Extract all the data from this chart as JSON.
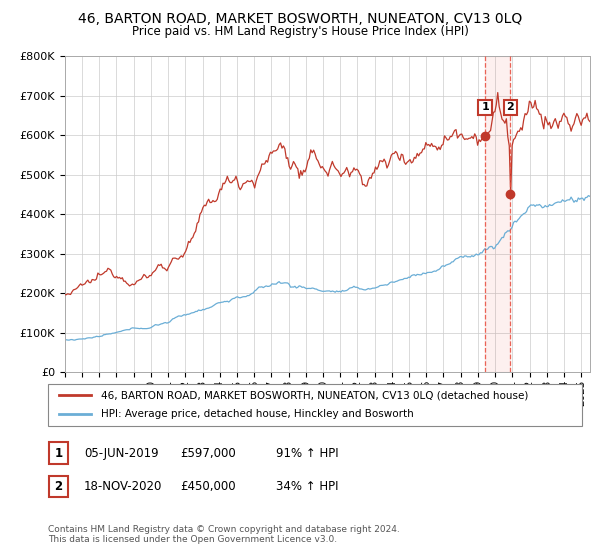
{
  "title": "46, BARTON ROAD, MARKET BOSWORTH, NUNEATON, CV13 0LQ",
  "subtitle": "Price paid vs. HM Land Registry's House Price Index (HPI)",
  "legend_line1": "46, BARTON ROAD, MARKET BOSWORTH, NUNEATON, CV13 0LQ (detached house)",
  "legend_line2": "HPI: Average price, detached house, Hinckley and Bosworth",
  "footer": "Contains HM Land Registry data © Crown copyright and database right 2024.\nThis data is licensed under the Open Government Licence v3.0.",
  "point1_date": "05-JUN-2019",
  "point1_price": "£597,000",
  "point1_pct": "91% ↑ HPI",
  "point2_date": "18-NOV-2020",
  "point2_price": "£450,000",
  "point2_pct": "34% ↑ HPI",
  "red_color": "#c0392b",
  "blue_color": "#6baed6",
  "dashed_color": "#e74c3c",
  "background_color": "#ffffff",
  "grid_color": "#cccccc",
  "ylim": [
    0,
    800000
  ],
  "yticks": [
    0,
    100000,
    200000,
    300000,
    400000,
    500000,
    600000,
    700000,
    800000
  ],
  "ytick_labels": [
    "£0",
    "£100K",
    "£200K",
    "£300K",
    "£400K",
    "£500K",
    "£600K",
    "£700K",
    "£800K"
  ],
  "point1_x_year": 2019.42,
  "point1_y": 597000,
  "point2_x_year": 2020.88,
  "point2_y": 450000,
  "xmin": 1995.0,
  "xmax": 2025.5,
  "ann1_y": 670000,
  "ann2_y": 670000
}
